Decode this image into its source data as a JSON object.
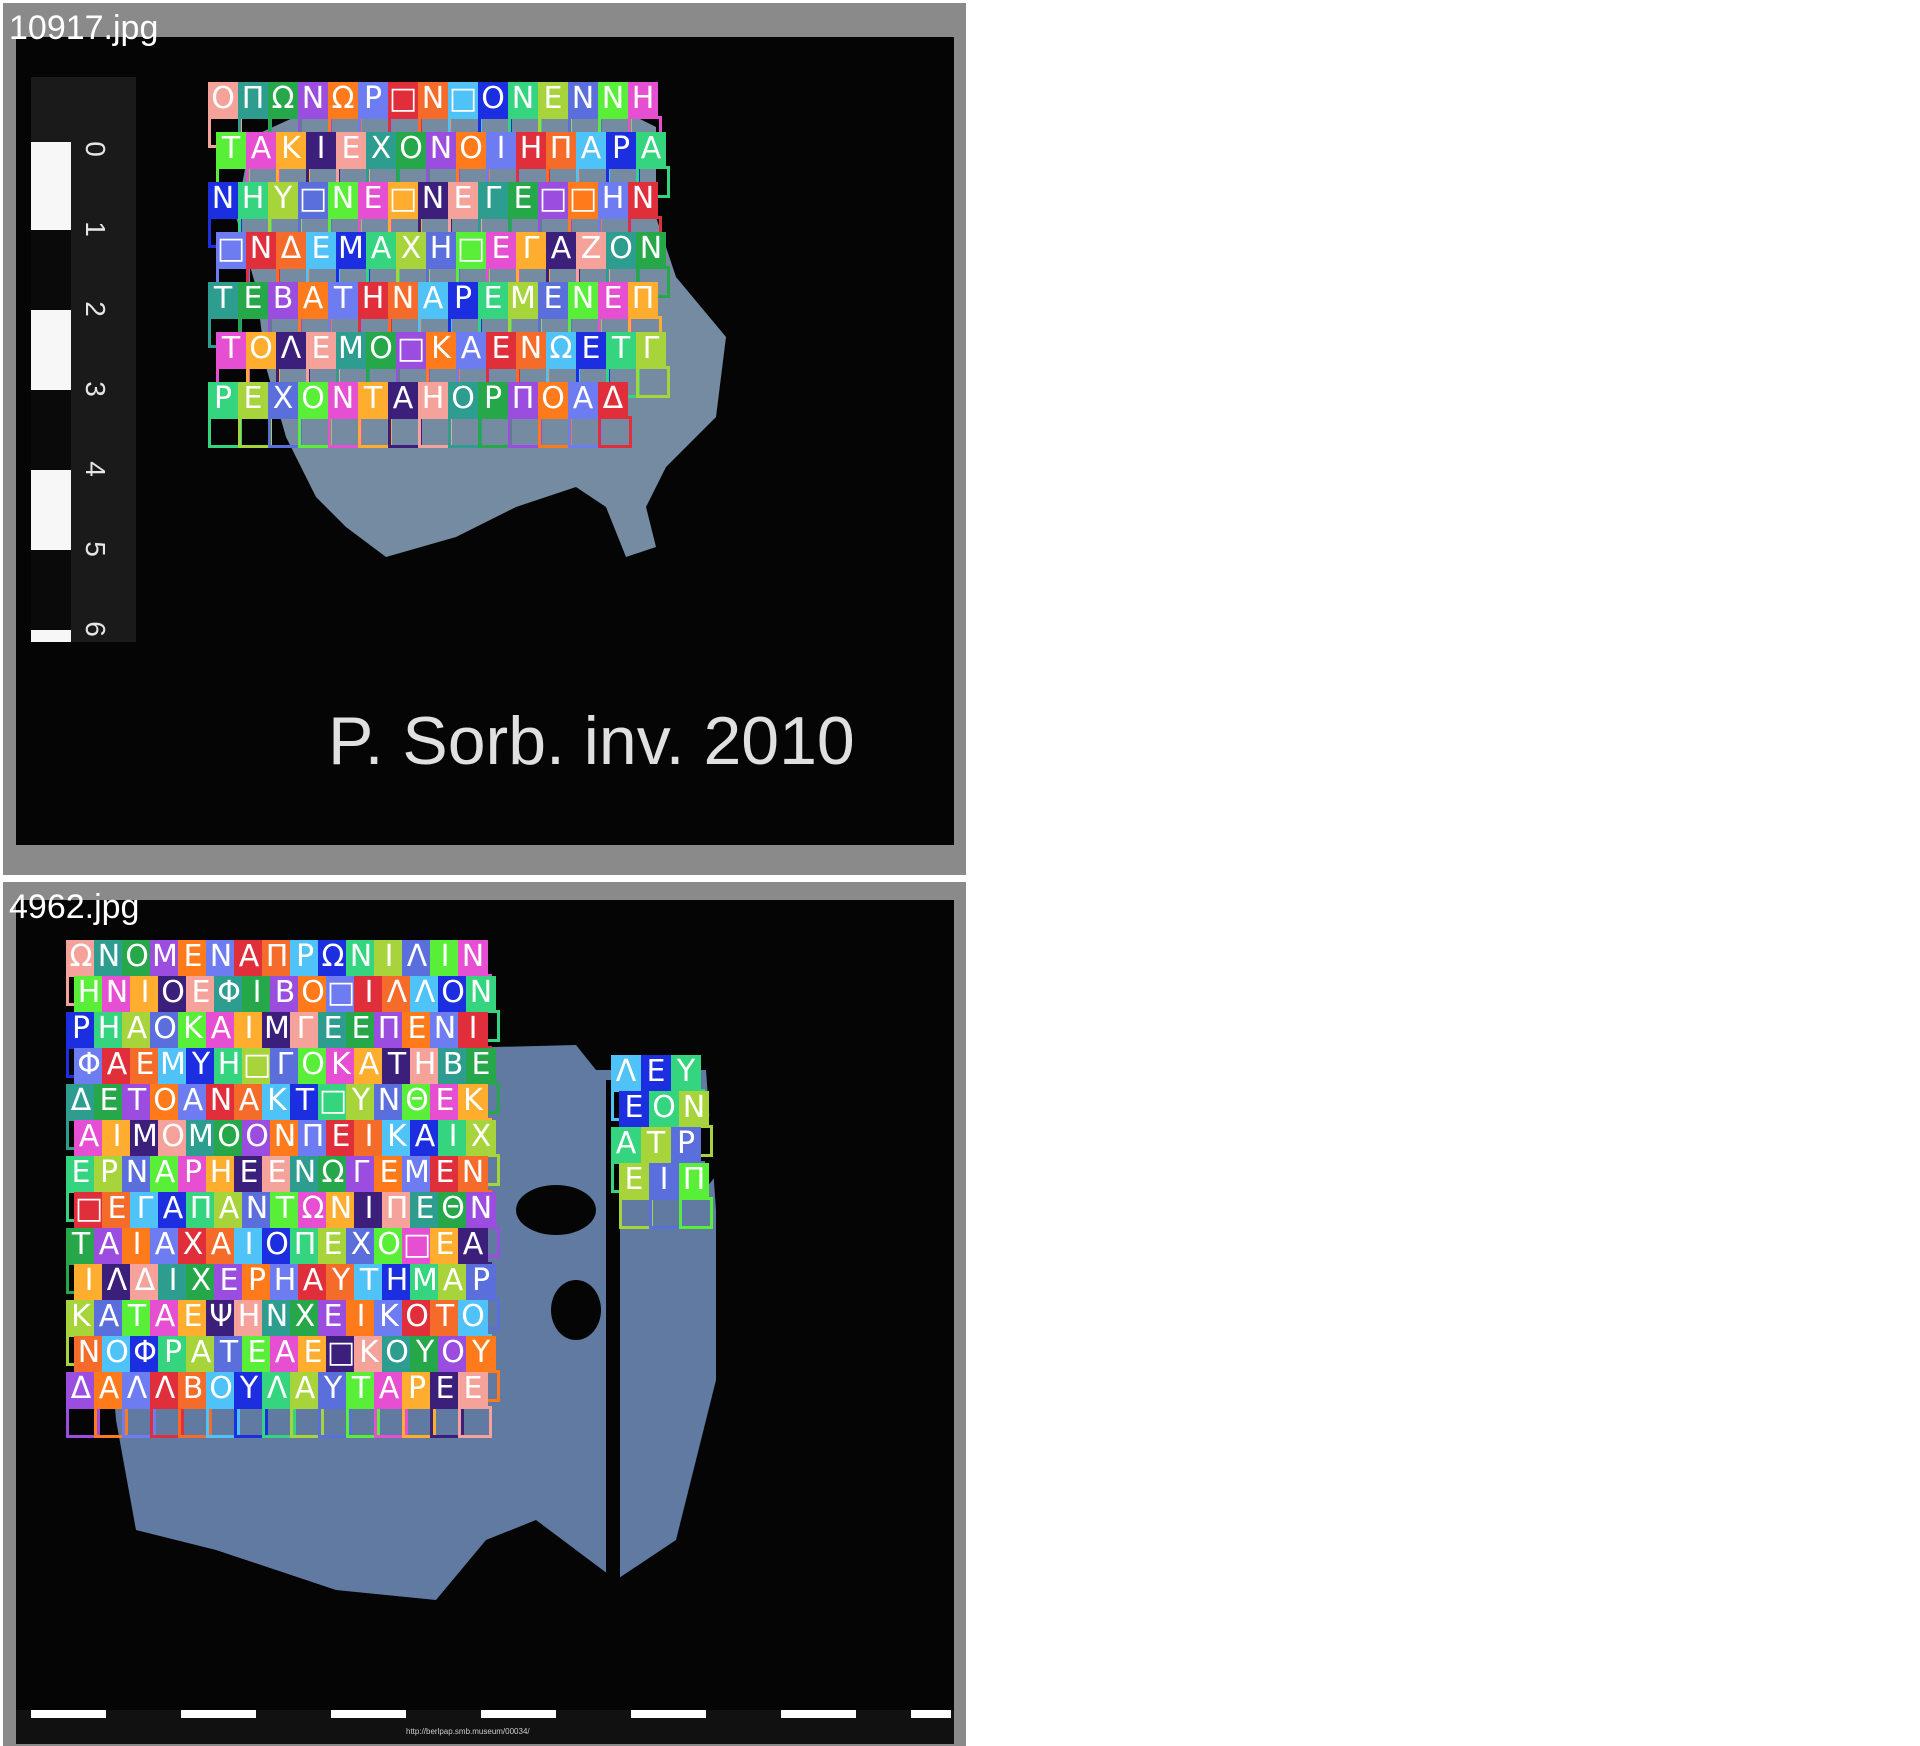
{
  "panels": [
    {
      "filename": "10917.jpg",
      "caption": "P. Sorb. inv. 2010",
      "ruler_ticks": [
        "0",
        "1",
        "2",
        "3",
        "4",
        "5",
        "6"
      ],
      "letters": [
        "Ο",
        "Π",
        "Ω",
        "Ν",
        "Ω",
        "Ρ",
        "□",
        "Ν",
        "□",
        "Ο",
        "Ν",
        "Ε",
        "Ν",
        "Ν",
        "Η",
        "Τ",
        "Α",
        "Κ",
        "Ι",
        "Ε",
        "Χ",
        "Ο",
        "Ν",
        "Ο",
        "Ι",
        "Η",
        "Π",
        "Α",
        "Ρ",
        "Α",
        "Ν",
        "Η",
        "Υ",
        "□",
        "Ν",
        "Ε",
        "□",
        "Ν",
        "Ε",
        "Γ",
        "Ε",
        "□",
        "□",
        "Η",
        "Ν",
        "□",
        "Ν",
        "Δ",
        "Ε",
        "Μ",
        "Α",
        "Χ",
        "Η",
        "□",
        "Ε",
        "Γ",
        "Α",
        "Ζ",
        "Ο",
        "Ν",
        "Τ",
        "Ε",
        "Β",
        "Α",
        "Τ",
        "Η",
        "Ν",
        "Α",
        "Ρ",
        "Ε",
        "Μ",
        "Ε",
        "Ν",
        "Ε",
        "Π",
        "Τ",
        "Ο",
        "Λ",
        "Ε",
        "Μ",
        "Ο",
        "□",
        "Κ",
        "Α",
        "Ε",
        "Ν",
        "Ω",
        "Ε",
        "Τ",
        "Γ",
        "Ρ",
        "Ε",
        "Χ",
        "Ο",
        "Ν",
        "Τ",
        "Α",
        "Η",
        "Ο",
        "Ρ",
        "Π",
        "Ο",
        "Α",
        "Δ"
      ]
    },
    {
      "filename": "4962.jpg",
      "footer_url": "http://berlpap.smb.museum/00034/",
      "letters": [
        "Ω",
        "Ν",
        "Ο",
        "Μ",
        "Ε",
        "Ν",
        "Α",
        "Π",
        "Ρ",
        "Ω",
        "Ν",
        "Ι",
        "Λ",
        "Ι",
        "Ν",
        "Η",
        "Ν",
        "Ι",
        "Ο",
        "Ε",
        "Φ",
        "Ι",
        "Β",
        "Ο",
        "□",
        "Ι",
        "Λ",
        "Λ",
        "Ο",
        "Ν",
        "Ρ",
        "Η",
        "Α",
        "Ο",
        "Κ",
        "Α",
        "Ι",
        "Μ",
        "Γ",
        "Ε",
        "Ε",
        "Π",
        "Ε",
        "Ν",
        "Ι",
        "Φ",
        "Α",
        "Ε",
        "Μ",
        "Υ",
        "Η",
        "□",
        "Γ",
        "Ο",
        "Κ",
        "Α",
        "Τ",
        "Η",
        "Β",
        "Ε",
        "Δ",
        "Ε",
        "Τ",
        "Ο",
        "Α",
        "Ν",
        "Α",
        "Κ",
        "Τ",
        "□",
        "Υ",
        "Ν",
        "Θ",
        "Ε",
        "Κ",
        "Α",
        "Ι",
        "Μ",
        "Ο",
        "Μ",
        "Ο",
        "Ο",
        "Ν",
        "Π",
        "Ε",
        "Ι",
        "Κ",
        "Α",
        "Ι",
        "Χ",
        "Ε",
        "Ρ",
        "Ν",
        "Α",
        "Ρ",
        "Η",
        "Ε",
        "Ε",
        "Ν",
        "Ω",
        "Γ",
        "Ε",
        "Μ",
        "Ε",
        "Ν",
        "□",
        "Ε",
        "Γ",
        "Α",
        "Π",
        "Α",
        "Ν",
        "Τ",
        "Ω",
        "Ν",
        "Ι",
        "Π",
        "Ε",
        "Θ",
        "Ν",
        "Τ",
        "Α",
        "Ι",
        "Α",
        "Χ",
        "Α",
        "Ι",
        "Ο",
        "Π",
        "Ε",
        "Χ",
        "Ο",
        "□",
        "Ε",
        "Α",
        "Ι",
        "Λ",
        "Δ",
        "Ι",
        "Χ",
        "Ε",
        "Ρ",
        "Η",
        "Α",
        "Υ",
        "Τ",
        "Η",
        "Μ",
        "Α",
        "Ρ",
        "Κ",
        "Α",
        "Τ",
        "Α",
        "Ε",
        "Ψ",
        "Η",
        "Ν",
        "Χ",
        "Ε",
        "Ι",
        "Κ",
        "Ο",
        "Τ",
        "Ο",
        "Ν",
        "Ο",
        "Φ",
        "Ρ",
        "Α",
        "Τ",
        "Ε",
        "Α",
        "Ε",
        "□",
        "Κ",
        "Ο",
        "Υ",
        "Ο",
        "Υ",
        "Δ",
        "Α",
        "Λ",
        "Λ",
        "Β",
        "Ο",
        "Υ",
        "Λ",
        "Α",
        "Υ",
        "Τ",
        "Α",
        "Ρ",
        "Ε",
        "Ε",
        "Λ",
        "Ε",
        "Υ",
        "Ε",
        "Ο",
        "Ν",
        "Α",
        "Τ",
        "Ρ",
        "Ε",
        "Ι",
        "Π"
      ]
    }
  ],
  "colors": {
    "palette": [
      "#f5a39a",
      "#6d7cf0",
      "#35d47f",
      "#ffad2e",
      "#9b4de0",
      "#4fc3f7",
      "#59ef39",
      "#2d9d8f",
      "#e02f3a",
      "#a7d43a",
      "#3b1f7a",
      "#ff7a1a",
      "#1b2fe0",
      "#e64fd1",
      "#26a84a",
      "#f56b2a",
      "#5a6fdc"
    ]
  }
}
